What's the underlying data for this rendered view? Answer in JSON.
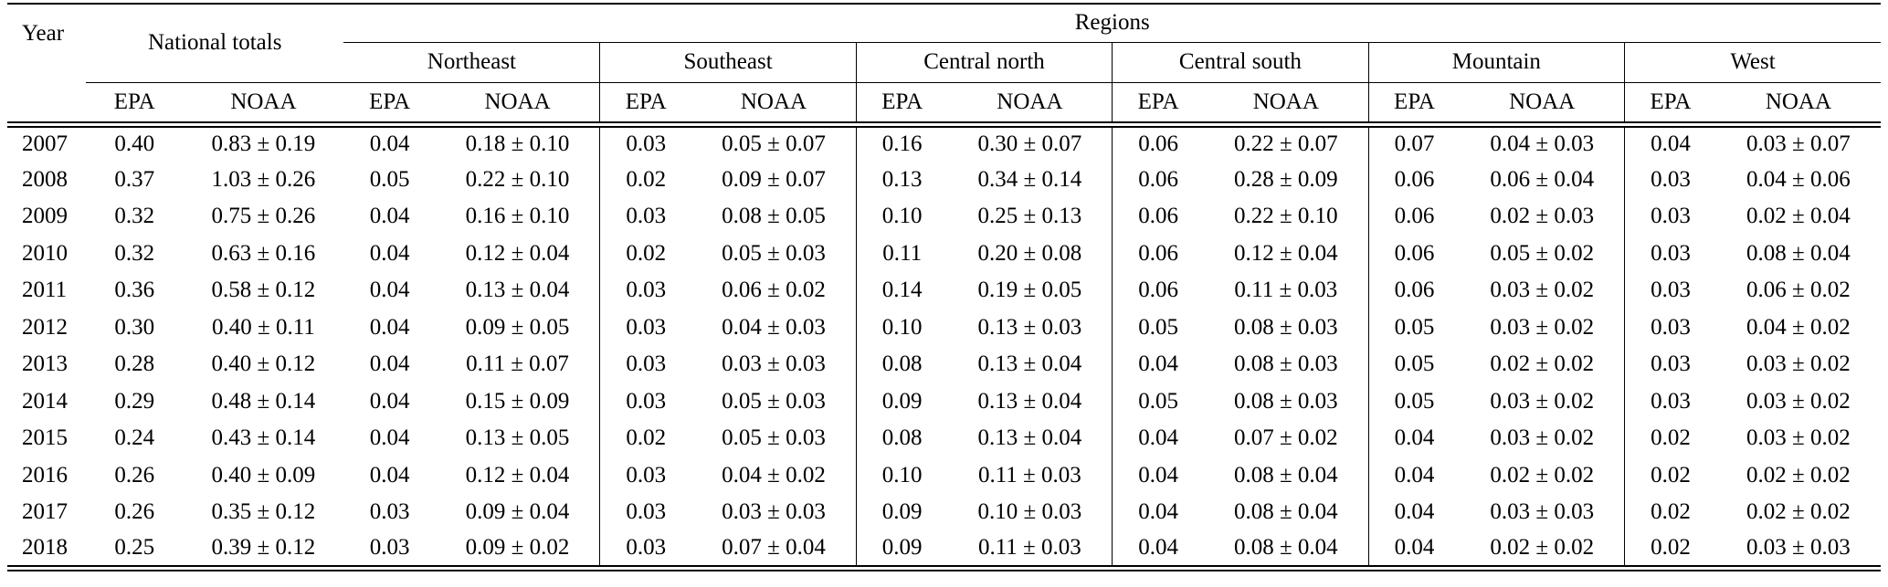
{
  "chart_data": {
    "type": "table",
    "corner_label": "Year",
    "national_label": "National totals",
    "regions_label": "Regions",
    "regions": [
      "Northeast",
      "Southeast",
      "Central north",
      "Central south",
      "Mountain",
      "West"
    ],
    "subcolumns": [
      "EPA",
      "NOAA"
    ],
    "rows": [
      {
        "year": "2007",
        "values": [
          "0.40",
          "0.83 ± 0.19",
          "0.04",
          "0.18 ± 0.10",
          "0.03",
          "0.05 ± 0.07",
          "0.16",
          "0.30 ± 0.07",
          "0.06",
          "0.22 ± 0.07",
          "0.07",
          "0.04 ± 0.03",
          "0.04",
          "0.03 ± 0.07"
        ]
      },
      {
        "year": "2008",
        "values": [
          "0.37",
          "1.03 ± 0.26",
          "0.05",
          "0.22 ± 0.10",
          "0.02",
          "0.09 ± 0.07",
          "0.13",
          "0.34 ± 0.14",
          "0.06",
          "0.28 ± 0.09",
          "0.06",
          "0.06 ± 0.04",
          "0.03",
          "0.04 ± 0.06"
        ]
      },
      {
        "year": "2009",
        "values": [
          "0.32",
          "0.75 ± 0.26",
          "0.04",
          "0.16 ± 0.10",
          "0.03",
          "0.08 ± 0.05",
          "0.10",
          "0.25 ± 0.13",
          "0.06",
          "0.22 ± 0.10",
          "0.06",
          "0.02 ± 0.03",
          "0.03",
          "0.02 ± 0.04"
        ]
      },
      {
        "year": "2010",
        "values": [
          "0.32",
          "0.63 ± 0.16",
          "0.04",
          "0.12 ± 0.04",
          "0.02",
          "0.05 ± 0.03",
          "0.11",
          "0.20 ± 0.08",
          "0.06",
          "0.12 ± 0.04",
          "0.06",
          "0.05 ± 0.02",
          "0.03",
          "0.08 ± 0.04"
        ]
      },
      {
        "year": "2011",
        "values": [
          "0.36",
          "0.58 ± 0.12",
          "0.04",
          "0.13 ± 0.04",
          "0.03",
          "0.06 ± 0.02",
          "0.14",
          "0.19 ± 0.05",
          "0.06",
          "0.11 ± 0.03",
          "0.06",
          "0.03 ± 0.02",
          "0.03",
          "0.06 ± 0.02"
        ]
      },
      {
        "year": "2012",
        "values": [
          "0.30",
          "0.40 ± 0.11",
          "0.04",
          "0.09 ± 0.05",
          "0.03",
          "0.04 ± 0.03",
          "0.10",
          "0.13 ± 0.03",
          "0.05",
          "0.08 ± 0.03",
          "0.05",
          "0.03 ± 0.02",
          "0.03",
          "0.04 ± 0.02"
        ]
      },
      {
        "year": "2013",
        "values": [
          "0.28",
          "0.40 ± 0.12",
          "0.04",
          "0.11 ± 0.07",
          "0.03",
          "0.03 ± 0.03",
          "0.08",
          "0.13 ± 0.04",
          "0.04",
          "0.08 ± 0.03",
          "0.05",
          "0.02 ± 0.02",
          "0.03",
          "0.03 ± 0.02"
        ]
      },
      {
        "year": "2014",
        "values": [
          "0.29",
          "0.48 ± 0.14",
          "0.04",
          "0.15 ± 0.09",
          "0.03",
          "0.05 ± 0.03",
          "0.09",
          "0.13 ± 0.04",
          "0.05",
          "0.08 ± 0.03",
          "0.05",
          "0.03 ± 0.02",
          "0.03",
          "0.03 ± 0.02"
        ]
      },
      {
        "year": "2015",
        "values": [
          "0.24",
          "0.43 ± 0.14",
          "0.04",
          "0.13 ± 0.05",
          "0.02",
          "0.05 ± 0.03",
          "0.08",
          "0.13 ± 0.04",
          "0.04",
          "0.07 ± 0.02",
          "0.04",
          "0.03 ± 0.02",
          "0.02",
          "0.03 ± 0.02"
        ]
      },
      {
        "year": "2016",
        "values": [
          "0.26",
          "0.40 ± 0.09",
          "0.04",
          "0.12 ± 0.04",
          "0.03",
          "0.04 ± 0.02",
          "0.10",
          "0.11 ± 0.03",
          "0.04",
          "0.08 ± 0.04",
          "0.04",
          "0.02 ± 0.02",
          "0.02",
          "0.02 ± 0.02"
        ]
      },
      {
        "year": "2017",
        "values": [
          "0.26",
          "0.35 ± 0.12",
          "0.03",
          "0.09 ± 0.04",
          "0.03",
          "0.03 ± 0.03",
          "0.09",
          "0.10 ± 0.03",
          "0.04",
          "0.08 ± 0.04",
          "0.04",
          "0.03 ± 0.03",
          "0.02",
          "0.02 ± 0.02"
        ]
      },
      {
        "year": "2018",
        "values": [
          "0.25",
          "0.39 ± 0.12",
          "0.03",
          "0.09 ± 0.02",
          "0.03",
          "0.07 ± 0.04",
          "0.09",
          "0.11 ± 0.03",
          "0.04",
          "0.08 ± 0.04",
          "0.04",
          "0.02 ± 0.02",
          "0.02",
          "0.03 ± 0.03"
        ]
      }
    ]
  }
}
